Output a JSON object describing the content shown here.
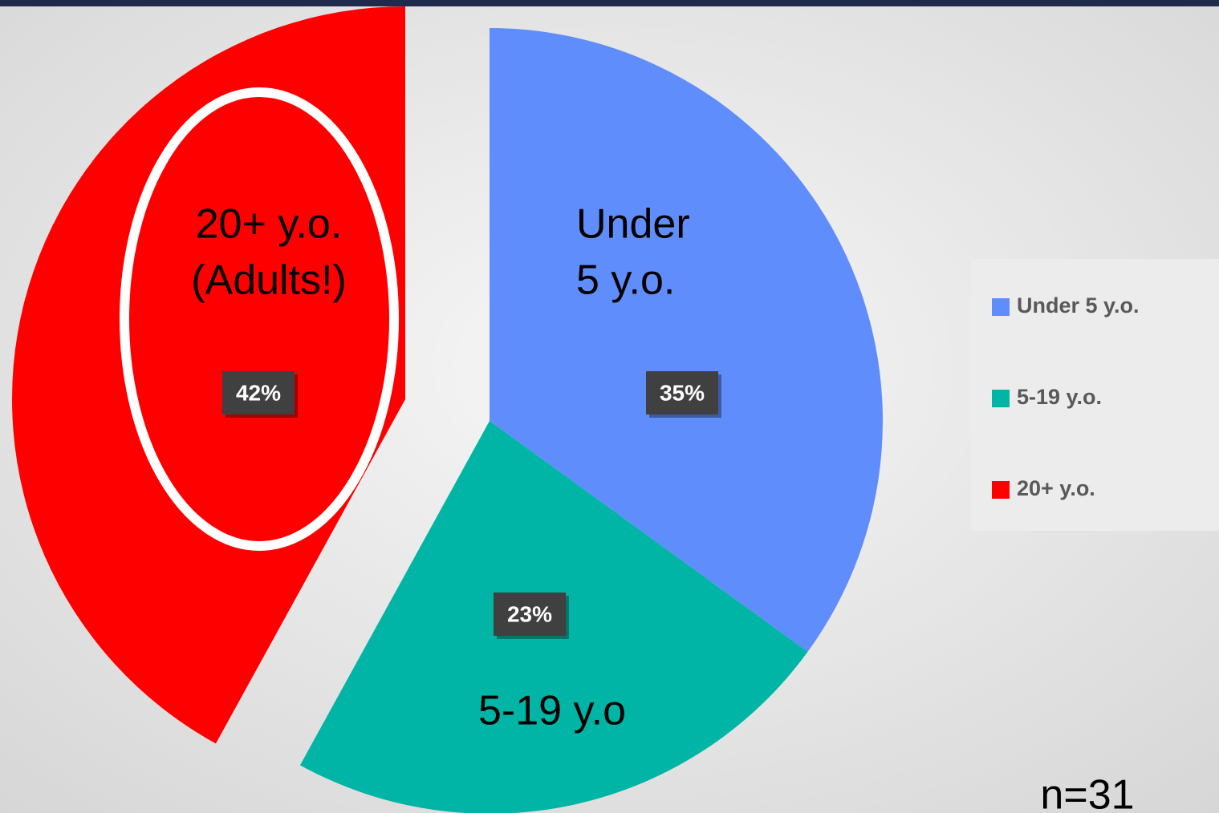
{
  "chart_data": {
    "type": "pie",
    "categories": [
      "Under 5 y.o.",
      "5-19 y.o.",
      "20+ y.o."
    ],
    "values": [
      35,
      23,
      42
    ],
    "value_labels": [
      "35%",
      "23%",
      "42%"
    ],
    "colors": [
      "#5f8dfb",
      "#00b5a5",
      "#ff0000"
    ],
    "slice_labels": [
      [
        "Under",
        "5 y.o."
      ],
      [
        "5-19 y.o"
      ],
      [
        "20+ y.o.",
        "(Adults!)"
      ]
    ],
    "note": "n=31",
    "legend": "right"
  }
}
